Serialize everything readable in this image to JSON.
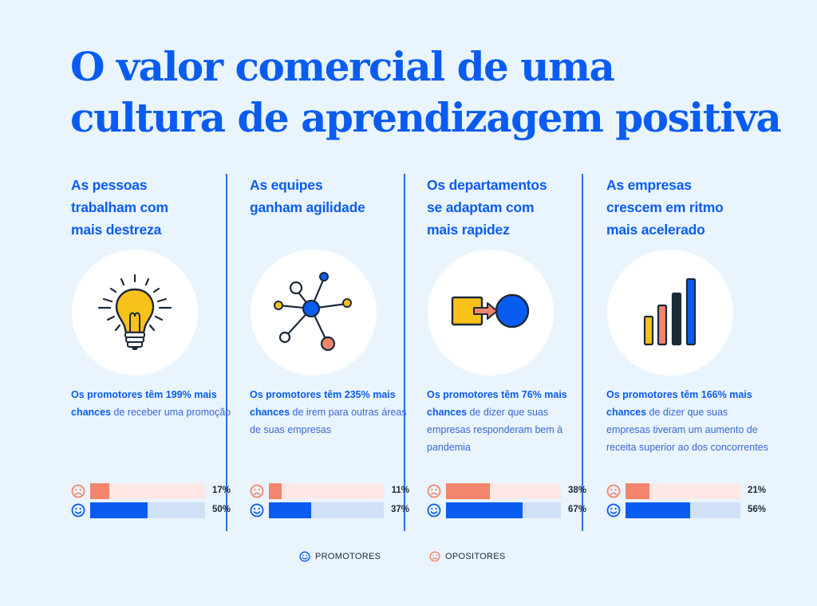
{
  "title": {
    "line1": "O valor comercial de uma",
    "line2": "cultura de aprendizagem positiva"
  },
  "colors": {
    "promoter": "#0a5cf0",
    "promoter_track": "#cfe0f7",
    "opponent": "#f2856c",
    "opponent_track": "#fde8e6",
    "divider": "#2c6fe0"
  },
  "columns": [
    {
      "heading": [
        "As pessoas",
        "trabalham com",
        "mais destreza"
      ],
      "icon": "lightbulb-icon",
      "stat_bold": "Os promotores têm 199% mais chances",
      "stat_rest": " de receber uma promoção"
    },
    {
      "heading": [
        "As equipes",
        "ganham agilidade"
      ],
      "icon": "network-icon",
      "stat_bold": "Os promotores têm 235% mais chances",
      "stat_rest": " de irem para outras áreas de suas empresas"
    },
    {
      "heading": [
        "Os departamentos",
        "se adaptam com",
        "mais rapidez"
      ],
      "icon": "square-to-circle-icon",
      "stat_bold": "Os promotores têm 76% mais chances",
      "stat_rest": " de dizer que suas empresas responderam bem à pandemia"
    },
    {
      "heading": [
        "As empresas",
        "crescem em ritmo",
        "mais acelerado"
      ],
      "icon": "growth-bars-icon",
      "stat_bold": "Os promotores têm 166% mais chances",
      "stat_rest": " de dizer que suas empresas tiveram um aumento de receita superior ao dos concorrentes"
    }
  ],
  "chart_data": {
    "type": "bar",
    "orientation": "horizontal",
    "categories": [
      "As pessoas trabalham com mais destreza",
      "As equipes ganham agilidade",
      "Os departamentos se adaptam com mais rapidez",
      "As empresas crescem em ritmo mais acelerado"
    ],
    "series": [
      {
        "name": "OPOSITORES",
        "values": [
          17,
          11,
          38,
          21
        ],
        "labels": [
          "17%",
          "11%",
          "38%",
          "21%"
        ]
      },
      {
        "name": "PROMOTORES",
        "values": [
          50,
          37,
          67,
          56
        ],
        "labels": [
          "50%",
          "37%",
          "67%",
          "56%"
        ]
      }
    ],
    "xlim": [
      0,
      100
    ],
    "legend": "bottom-center"
  },
  "legend": {
    "promoters": "PROMOTORES",
    "opponents": "OPOSITORES"
  }
}
